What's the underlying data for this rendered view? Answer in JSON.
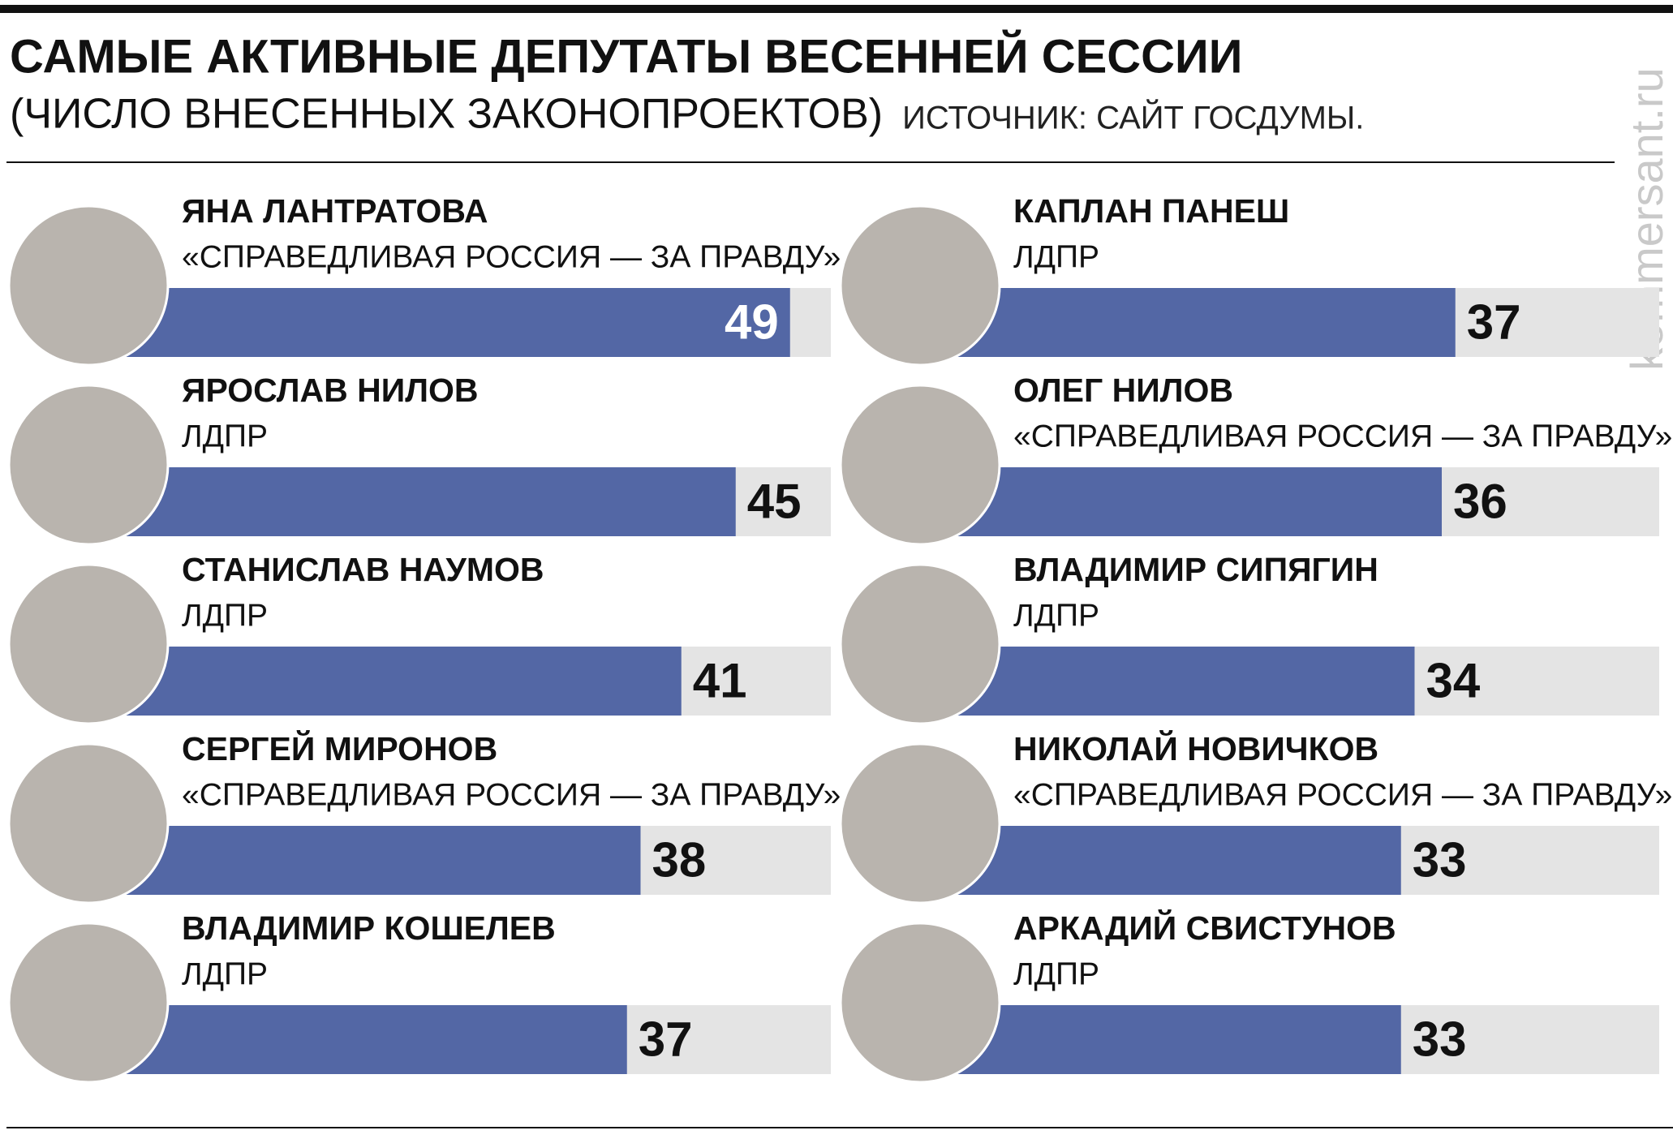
{
  "chart_data": {
    "type": "bar",
    "title": "САМЫЕ АКТИВНЫЕ ДЕПУТАТЫ ВЕСЕННЕЙ СЕССИИ",
    "subtitle": "(ЧИСЛО ВНЕСЕННЫХ ЗАКОНОПРОЕКТОВ)",
    "source": "ИСТОЧНИК: САЙТ ГОСДУМЫ.",
    "watermark": "kommersant.ru",
    "categories": [
      "ЯНА ЛАНТРАТОВА",
      "ЯРОСЛАВ НИЛОВ",
      "СТАНИСЛАВ НАУМОВ",
      "СЕРГЕЙ МИРОНОВ",
      "ВЛАДИМИР КОШЕЛЕВ",
      "КАПЛАН ПАНЕШ",
      "ОЛЕГ НИЛОВ",
      "ВЛАДИМИР СИПЯГИН",
      "НИКОЛАЙ НОВИЧКОВ",
      "АРКАДИЙ СВИСТУНОВ"
    ],
    "parties": [
      "«СПРАВЕДЛИВАЯ РОССИЯ — ЗА ПРАВДУ»",
      "ЛДПР",
      "ЛДПР",
      "«СПРАВЕДЛИВАЯ РОССИЯ — ЗА ПРАВДУ»",
      "ЛДПР",
      "ЛДПР",
      "«СПРАВЕДЛИВАЯ РОССИЯ — ЗА ПРАВДУ»",
      "ЛДПР",
      "«СПРАВЕДЛИВАЯ РОССИЯ — ЗА ПРАВДУ»",
      "ЛДПР"
    ],
    "values": [
      49,
      45,
      41,
      38,
      37,
      37,
      36,
      34,
      33,
      33
    ],
    "color": "#5367a5",
    "xlim": [
      0,
      52
    ]
  }
}
